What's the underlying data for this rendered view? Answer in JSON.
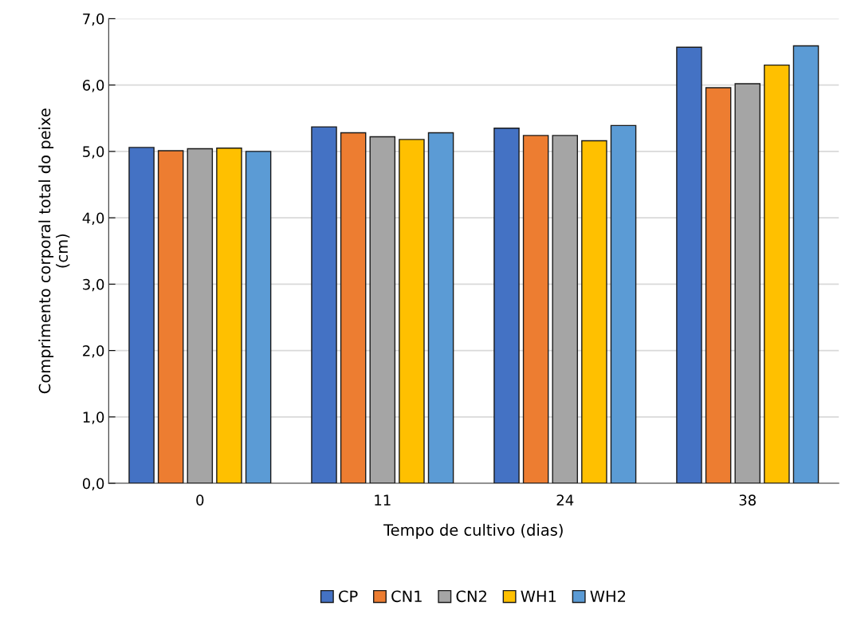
{
  "chart_data": {
    "type": "bar",
    "xlabel": "Tempo de cultivo (dias)",
    "ylabel": "Comprimento corporal total do peixe\n(cm)",
    "categories": [
      "0",
      "11",
      "24",
      "38"
    ],
    "series": [
      {
        "name": "CP",
        "color": "#4472c4",
        "values": [
          5.06,
          5.37,
          5.35,
          6.57
        ]
      },
      {
        "name": "CN1",
        "color": "#ed7d31",
        "values": [
          5.01,
          5.28,
          5.24,
          5.96
        ]
      },
      {
        "name": "CN2",
        "color": "#a5a5a5",
        "values": [
          5.04,
          5.22,
          5.24,
          6.02
        ]
      },
      {
        "name": "WH1",
        "color": "#ffc000",
        "values": [
          5.05,
          5.18,
          5.16,
          6.3
        ]
      },
      {
        "name": "WH2",
        "color": "#5b9bd5",
        "values": [
          5.0,
          5.28,
          5.39,
          6.59
        ]
      }
    ],
    "ylim": [
      0,
      7
    ],
    "yticks": [
      {
        "value": 0,
        "label": "0,0"
      },
      {
        "value": 1,
        "label": "1,0"
      },
      {
        "value": 2,
        "label": "2,0"
      },
      {
        "value": 3,
        "label": "3,0"
      },
      {
        "value": 4,
        "label": "4,0"
      },
      {
        "value": 5,
        "label": "5,0"
      },
      {
        "value": 6,
        "label": "6,0"
      },
      {
        "value": 7,
        "label": "7,0"
      }
    ],
    "grid": "y",
    "legend": "bottom"
  }
}
